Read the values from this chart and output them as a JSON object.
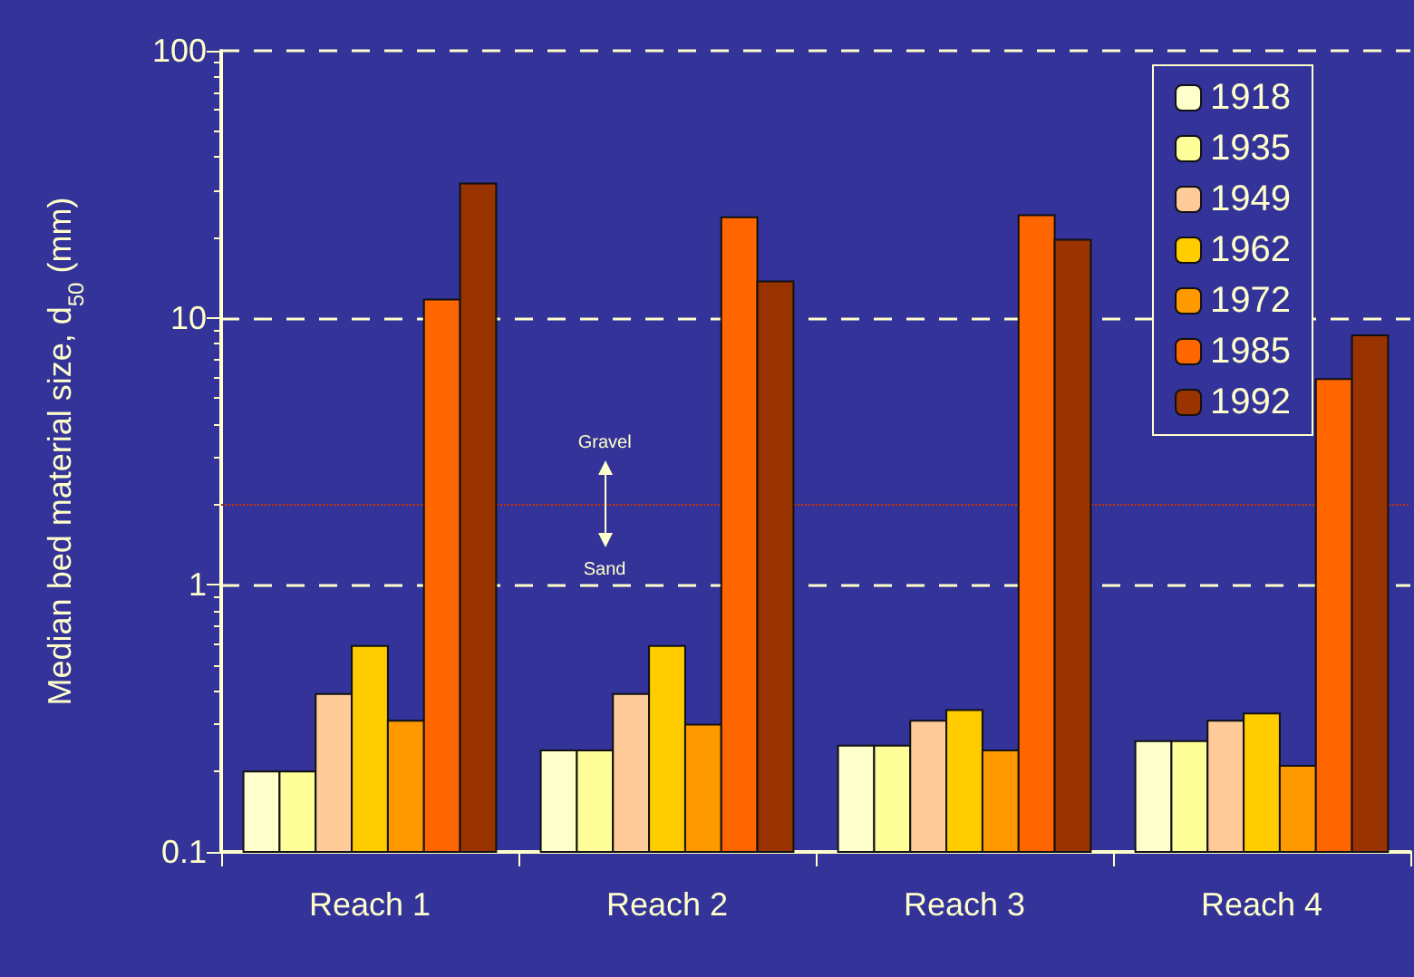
{
  "chart_data": {
    "type": "bar",
    "ylabel": "Median bed material size, d$_{50}$ (mm)",
    "categories": [
      "Reach 1",
      "Reach 2",
      "Reach 3",
      "Reach 4"
    ],
    "series": [
      {
        "name": "1918",
        "color": "#ffffcc",
        "values": [
          0.2,
          0.24,
          0.25,
          0.26
        ]
      },
      {
        "name": "1935",
        "color": "#ffff99",
        "values": [
          0.2,
          0.24,
          0.25,
          0.26
        ]
      },
      {
        "name": "1949",
        "color": "#ffcc99",
        "values": [
          0.39,
          0.39,
          0.31,
          0.31
        ]
      },
      {
        "name": "1962",
        "color": "#ffcc00",
        "values": [
          0.59,
          0.59,
          0.34,
          0.33
        ]
      },
      {
        "name": "1972",
        "color": "#ff9900",
        "values": [
          0.31,
          0.3,
          0.24,
          0.21
        ]
      },
      {
        "name": "1985",
        "color": "#ff6600",
        "values": [
          11.7,
          23.8,
          24.2,
          5.9
        ]
      },
      {
        "name": "1992",
        "color": "#993300",
        "values": [
          31.8,
          13.7,
          19.6,
          8.6
        ]
      }
    ],
    "log": true,
    "ylim": [
      0.1,
      100
    ],
    "yticks": [
      0.1,
      1,
      10,
      100
    ],
    "grid": "y",
    "legend": "top right",
    "ref_lines": [
      {
        "axis": "y",
        "value": 2,
        "color": "#cc3300",
        "line_style": "dotted"
      }
    ],
    "annotations": [
      "Gravel",
      "Sand"
    ]
  }
}
